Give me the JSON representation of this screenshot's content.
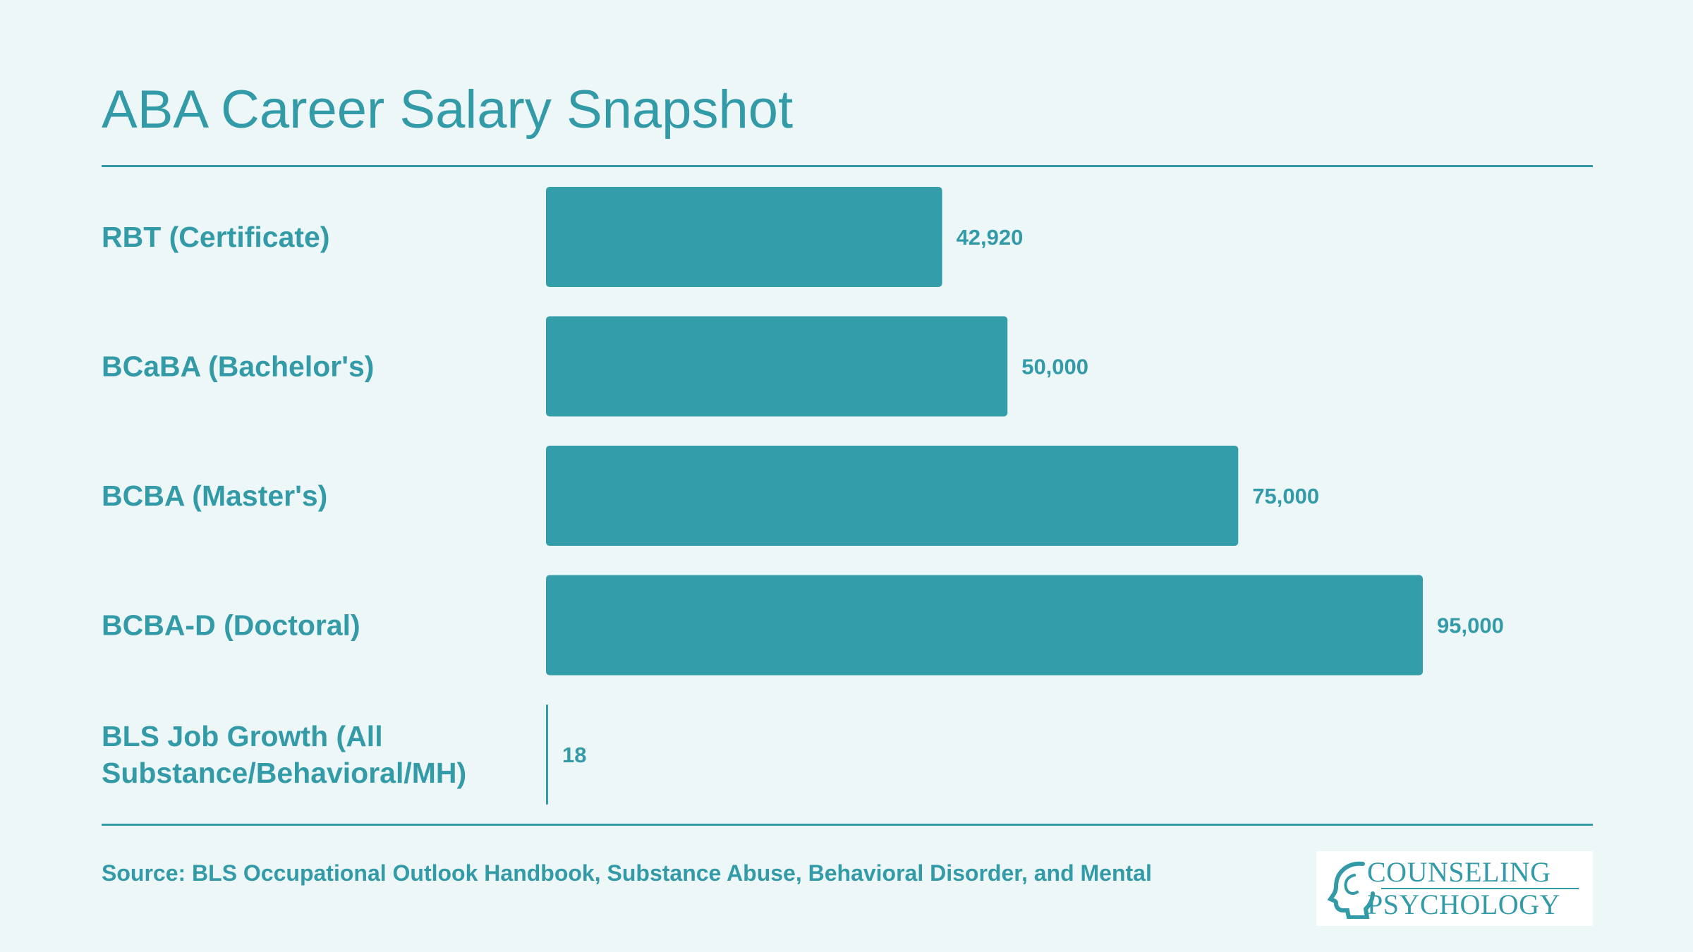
{
  "title": "ABA Career Salary Snapshot",
  "source": "Source: BLS Occupational Outlook Handbook, Substance Abuse, Behavioral Disorder, and Mental",
  "logo": {
    "line1": "COUNSELING",
    "line2": "PSYCHOLOGY",
    "icon": "head-silhouette-icon"
  },
  "colors": {
    "background": "#eef7f8",
    "accent": "#339aa7",
    "bar": "#339daa"
  },
  "chart_data": {
    "type": "bar",
    "orientation": "horizontal",
    "categories": [
      "RBT (Certificate)",
      "BCaBA (Bachelor's)",
      "BCBA (Master's)",
      "BCBA-D (Doctoral)",
      "BLS Job Growth (All Substance/Behavioral/MH)"
    ],
    "category_lines": [
      [
        "RBT (Certificate)"
      ],
      [
        "BCaBA (Bachelor's)"
      ],
      [
        "BCBA (Master's)"
      ],
      [
        "BCBA-D (Doctoral)"
      ],
      [
        "BLS Job Growth (All",
        "Substance/Behavioral/MH)"
      ]
    ],
    "values": [
      42920,
      50000,
      75000,
      95000,
      18
    ],
    "value_labels": [
      "42,920",
      "50,000",
      "75,000",
      "95,000",
      "18"
    ],
    "xlim": [
      0,
      100000
    ],
    "grid": false,
    "legend": "none"
  }
}
